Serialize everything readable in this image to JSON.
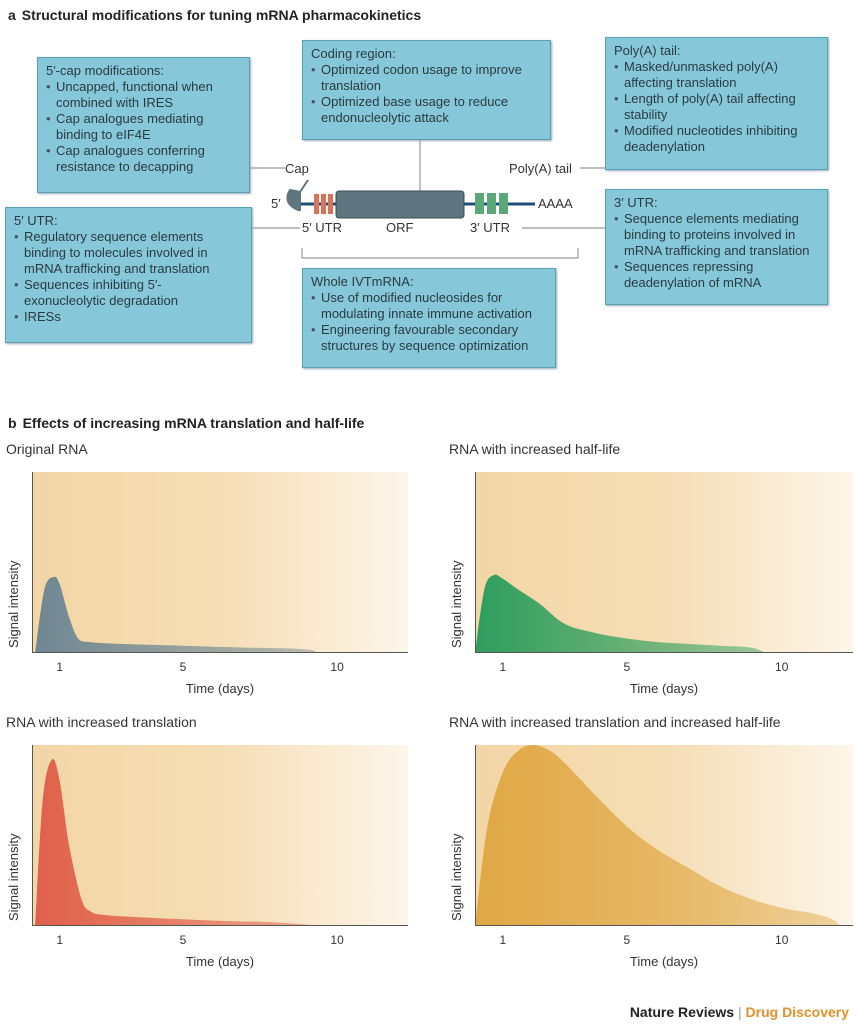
{
  "panel_a": {
    "letter": "a",
    "title": "Structural modifications for tuning mRNA pharmacokinetics",
    "boxes": {
      "cap": {
        "title": "5′-cap modifications:",
        "items": [
          "Uncapped, functional when combined with IRES",
          "Cap analogues mediating binding to eIF4E",
          "Cap analogues conferring resistance to decapping"
        ]
      },
      "coding": {
        "title": "Coding region:",
        "items": [
          "Optimized codon usage to improve translation",
          "Optimized base usage to reduce endonucleolytic attack"
        ]
      },
      "polya": {
        "title": "Poly(A) tail:",
        "items": [
          "Masked/unmasked poly(A) affecting translation",
          "Length of poly(A) tail affecting stability",
          "Modified nucleotides inhibiting deadenylation"
        ]
      },
      "utr5": {
        "title": "5′ UTR:",
        "items": [
          "Regulatory sequence elements binding to molecules involved in mRNA trafficking and translation",
          "Sequences inhibiting 5′-exonucleolytic degradation",
          "IRESs"
        ]
      },
      "whole": {
        "title": "Whole IVTmRNA:",
        "items": [
          "Use of modified nucleosides  for modulating innate immune activation",
          "Engineering favourable secondary structures by sequence optimization"
        ]
      },
      "utr3": {
        "title": "3′ UTR:",
        "items": [
          "Sequence elements mediating binding to proteins involved in mRNA trafficking and translation",
          "Sequences repressing deadenylation of mRNA"
        ]
      }
    },
    "labels": {
      "cap": "Cap",
      "five_prime": "5′",
      "utr5": "5′ UTR",
      "orf": "ORF",
      "utr3": "3′ UTR",
      "polya_tail": "Poly(A) tail",
      "aaaa": "AAAA"
    },
    "colors": {
      "box": "#86c8da",
      "utr5_elements": "#d9735a",
      "utr3_elements": "#5aa878",
      "orf": "#5f7580",
      "backbone": "#1f4e79"
    }
  },
  "panel_b": {
    "letter": "b",
    "title": "Effects of increasing mRNA translation and half-life"
  },
  "chart_data": [
    {
      "type": "area",
      "title": "Original RNA",
      "xlabel": "Time (days)",
      "ylabel": "Signal intensity",
      "xticks": [
        1,
        5,
        10
      ],
      "xlim": [
        0.1,
        12.3
      ],
      "ylim": [
        0,
        1
      ],
      "color": "#6f8793",
      "x": [
        0.2,
        0.5,
        0.8,
        1.0,
        1.3,
        1.6,
        2.0,
        3,
        5,
        7,
        8.5,
        9.2,
        9.3
      ],
      "y": [
        0,
        0.35,
        0.42,
        0.38,
        0.2,
        0.08,
        0.06,
        0.05,
        0.04,
        0.03,
        0.025,
        0.015,
        0
      ]
    },
    {
      "type": "area",
      "title": "RNA with increased half-life",
      "xlabel": "Time (days)",
      "ylabel": "Signal intensity",
      "xticks": [
        1,
        5,
        10
      ],
      "xlim": [
        0.1,
        12.3
      ],
      "ylim": [
        0,
        1
      ],
      "color": "#2e9e5e",
      "x": [
        0.1,
        0.4,
        0.7,
        1.0,
        1.5,
        2.2,
        3,
        4,
        5,
        6,
        7,
        8,
        9,
        9.5
      ],
      "y": [
        0,
        0.35,
        0.43,
        0.41,
        0.35,
        0.27,
        0.16,
        0.11,
        0.08,
        0.06,
        0.05,
        0.04,
        0.03,
        0
      ]
    },
    {
      "type": "area",
      "title": "RNA with increased translation",
      "xlabel": "Time (days)",
      "ylabel": "Signal intensity",
      "xticks": [
        1,
        5,
        10
      ],
      "xlim": [
        0.1,
        12.3
      ],
      "ylim": [
        0,
        1
      ],
      "color": "#e0604a",
      "x": [
        0.2,
        0.45,
        0.75,
        1.0,
        1.3,
        1.7,
        2.0,
        2.5,
        4,
        6,
        8,
        9.5
      ],
      "y": [
        0,
        0.7,
        0.92,
        0.8,
        0.45,
        0.15,
        0.08,
        0.06,
        0.045,
        0.03,
        0.02,
        0
      ]
    },
    {
      "type": "area",
      "title": "RNA with increased translation and increased half-life",
      "xlabel": "Time (days)",
      "ylabel": "Signal intensity",
      "xticks": [
        1,
        5,
        10
      ],
      "xlim": [
        0.1,
        12.3
      ],
      "ylim": [
        0,
        1
      ],
      "color": "#e0a845",
      "x": [
        0.1,
        0.5,
        1,
        1.5,
        2,
        2.5,
        3,
        4,
        5,
        6,
        7,
        8,
        9,
        10,
        11,
        11.6,
        11.9
      ],
      "y": [
        0,
        0.55,
        0.85,
        0.97,
        1.0,
        0.97,
        0.9,
        0.72,
        0.55,
        0.42,
        0.32,
        0.22,
        0.15,
        0.1,
        0.07,
        0.04,
        0
      ]
    }
  ],
  "footer": {
    "journal": "Nature Reviews",
    "section": "Drug Discovery",
    "separator": "|"
  }
}
